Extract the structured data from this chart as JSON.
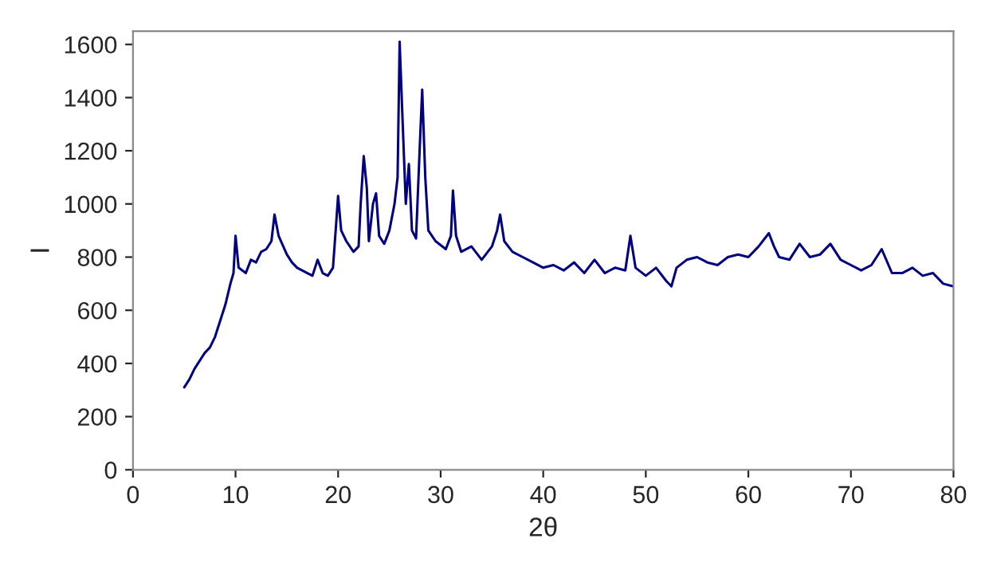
{
  "chart_data": {
    "type": "line",
    "xlabel": "2θ",
    "ylabel": "I",
    "xlim": [
      0,
      80
    ],
    "ylim": [
      0,
      1650
    ],
    "xticks": [
      0,
      10,
      20,
      30,
      40,
      50,
      60,
      70,
      80
    ],
    "yticks": [
      0,
      200,
      400,
      600,
      800,
      1000,
      1200,
      1400,
      1600
    ],
    "grid": false,
    "legend": false,
    "marker": "none",
    "line_style": "solid",
    "series": [
      {
        "color": "#000080",
        "x": [
          5.0,
          5.5,
          6,
          6.5,
          7,
          7.5,
          8,
          8.5,
          9,
          9.5,
          9.8,
          10.0,
          10.3,
          11,
          11.5,
          12,
          12.5,
          13,
          13.5,
          13.8,
          14.2,
          15,
          15.5,
          16,
          17,
          17.5,
          18,
          18.5,
          19,
          19.5,
          19.8,
          20.0,
          20.3,
          20.8,
          21.5,
          22,
          22.2,
          22.5,
          22.8,
          23.0,
          23.4,
          23.7,
          24.0,
          24.5,
          25,
          25.5,
          25.8,
          26.0,
          26.3,
          26.6,
          26.9,
          27.2,
          27.6,
          28.0,
          28.2,
          28.5,
          28.8,
          29.5,
          30.5,
          31.0,
          31.2,
          31.5,
          32,
          33,
          34,
          35,
          35.5,
          35.8,
          36.2,
          37,
          38,
          39,
          40,
          41,
          42,
          43,
          44,
          45,
          46,
          47,
          48,
          48.5,
          49,
          50,
          51,
          52,
          52.5,
          53,
          54,
          55,
          56,
          57,
          58,
          59,
          60,
          61,
          62,
          62.5,
          63,
          64,
          65,
          66,
          67,
          68,
          69,
          70,
          71,
          72,
          73,
          74,
          75,
          76,
          77,
          78,
          79,
          80
        ],
        "values": [
          310,
          340,
          380,
          410,
          440,
          460,
          500,
          560,
          620,
          700,
          740,
          880,
          760,
          740,
          790,
          780,
          820,
          830,
          860,
          960,
          880,
          810,
          780,
          760,
          740,
          730,
          790,
          740,
          730,
          760,
          920,
          1030,
          900,
          860,
          820,
          840,
          1000,
          1180,
          1060,
          860,
          1000,
          1040,
          880,
          850,
          900,
          1000,
          1100,
          1610,
          1300,
          1000,
          1150,
          900,
          870,
          1250,
          1430,
          1100,
          900,
          860,
          830,
          880,
          1050,
          880,
          820,
          840,
          790,
          840,
          900,
          960,
          860,
          820,
          800,
          780,
          760,
          770,
          750,
          780,
          740,
          790,
          740,
          760,
          750,
          880,
          760,
          730,
          760,
          710,
          690,
          760,
          790,
          800,
          780,
          770,
          800,
          810,
          800,
          840,
          890,
          840,
          800,
          790,
          850,
          800,
          810,
          850,
          790,
          770,
          750,
          770,
          830,
          740,
          740,
          760,
          730,
          740,
          700,
          690
        ]
      }
    ]
  }
}
